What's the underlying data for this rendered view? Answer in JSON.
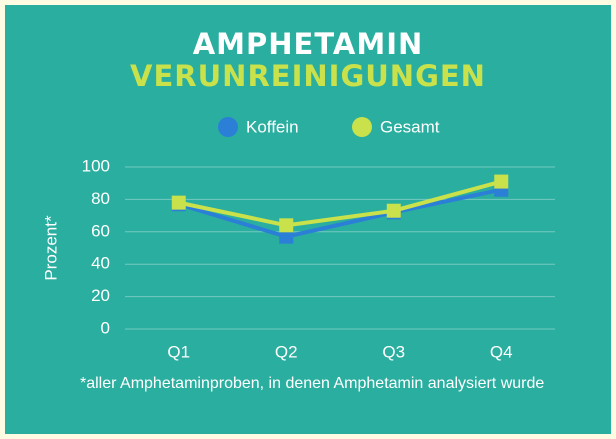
{
  "chart_data": {
    "type": "line",
    "title": "AMPHETAMIN",
    "subtitle": "VERUNREINIGUNGEN",
    "y_label": "Prozent*",
    "footnote": "*aller Amphetaminproben, in denen Amphetamin analysiert wurde",
    "categories": [
      "Q1",
      "Q2",
      "Q3",
      "Q4"
    ],
    "series": [
      {
        "name": "Koffein",
        "color": "#2b7fd6",
        "values": [
          77,
          57,
          72,
          86
        ]
      },
      {
        "name": "Gesamt",
        "color": "#c9e14b",
        "values": [
          78,
          64,
          73,
          91
        ]
      }
    ],
    "ylim": [
      0,
      100
    ],
    "yticks": [
      0,
      20,
      40,
      60,
      80,
      100
    ],
    "grid": true,
    "legend": "top"
  }
}
